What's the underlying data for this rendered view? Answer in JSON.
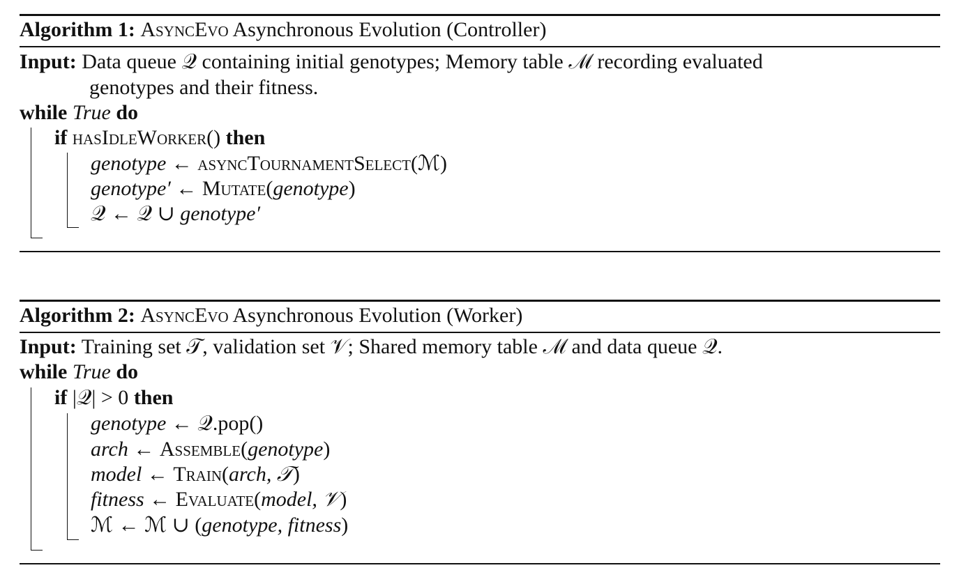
{
  "algorithm1": {
    "label": "Algorithm 1:",
    "name_sc": "AsyncEvo",
    "title_rest": " Asynchronous Evolution (Controller)",
    "input_label": "Input:",
    "input_line1": "Data queue 𝒬 containing initial genotypes; Memory table ℳ recording evaluated",
    "input_line2": "genotypes and their fitness.",
    "while_kw": "while",
    "while_cond": "True",
    "do_kw": "do",
    "if_kw": "if",
    "if_cond": "hasIdleWorker()",
    "then_kw": "then",
    "stmt1_lhs": "genotype",
    "stmt1_arrow": " ← ",
    "stmt1_fn": "asyncTournamentSelect",
    "stmt1_args": "(ℳ)",
    "stmt2_lhs": "genotype′",
    "stmt2_arrow": " ← ",
    "stmt2_fn": "Mutate",
    "stmt2_args_open": "(",
    "stmt2_arg": "genotype",
    "stmt2_args_close": ")",
    "stmt3_text": "𝒬 ← 𝒬 ∪ ",
    "stmt3_arg": "genotype′"
  },
  "algorithm2": {
    "label": "Algorithm 2:",
    "name_sc": "AsyncEvo",
    "title_rest": " Asynchronous Evolution (Worker)",
    "input_label": "Input:",
    "input_line1": "Training set 𝒯, validation set 𝒱; Shared memory table ℳ and data queue 𝒬.",
    "while_kw": "while",
    "while_cond": "True",
    "do_kw": "do",
    "if_kw": "if",
    "if_cond": "|𝒬| > 0",
    "then_kw": "then",
    "stmt1_lhs": "genotype",
    "stmt1_rest": " ← 𝒬.pop()",
    "stmt2_lhs": "arch",
    "stmt2_arrow": " ← ",
    "stmt2_fn": "Assemble",
    "stmt2_open": "(",
    "stmt2_arg": "genotype",
    "stmt2_close": ")",
    "stmt3_lhs": "model",
    "stmt3_arrow": " ← ",
    "stmt3_fn": "Train",
    "stmt3_open": "(",
    "stmt3_arg": "arch, 𝒯",
    "stmt3_close": ")",
    "stmt4_lhs": "fitness",
    "stmt4_arrow": " ← ",
    "stmt4_fn": "Evaluate",
    "stmt4_open": "(",
    "stmt4_arg": "model, 𝒱",
    "stmt4_close": ")",
    "stmt5_text": "ℳ ← ℳ ∪ (",
    "stmt5_arg": "genotype, fitness",
    "stmt5_close": ")"
  }
}
